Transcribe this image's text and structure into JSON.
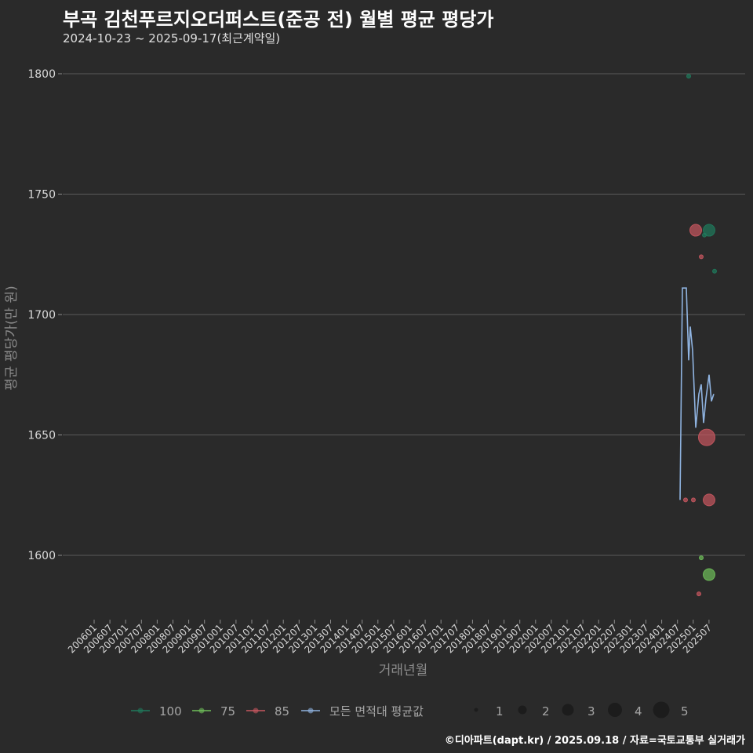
{
  "header": {
    "title": "부곡 김천푸르지오더퍼스트(준공 전) 월별 평균 평당가",
    "subtitle": "2024-10-23 ~ 2025-09-17(최근계약일)"
  },
  "caption": "©디아파트(dapt.kr) / 2025.09.18 / 자료=국토교통부 실거래가",
  "colors": {
    "background": "#2a2a2a",
    "grid": "#5a5a5a",
    "area_100": "#1f7a5c",
    "area_75": "#6fbf5a",
    "area_85": "#c8575f",
    "average_line": "#8fb3e0"
  },
  "chart_data": {
    "type": "line+scatter",
    "title": "부곡 김천푸르지오더퍼스트(준공 전) 월별 평균 평당가",
    "subtitle": "2024-10-23 ~ 2025-09-17(최근계약일)",
    "xlabel": "거래년월",
    "ylabel": "평균 평당가(만 원)",
    "ylim": [
      1572,
      1818
    ],
    "yticks": [
      1600,
      1650,
      1700,
      1750,
      1800
    ],
    "xticks": [
      "200601",
      "200607",
      "200701",
      "200707",
      "200801",
      "200807",
      "200901",
      "200907",
      "201001",
      "201007",
      "201101",
      "201107",
      "201201",
      "201207",
      "201301",
      "201307",
      "201401",
      "201407",
      "201501",
      "201507",
      "201601",
      "201607",
      "201701",
      "201707",
      "201801",
      "201807",
      "201901",
      "201907",
      "202001",
      "202007",
      "202101",
      "202107",
      "202201",
      "202207",
      "202301",
      "202307",
      "202401",
      "202407",
      "202501",
      "202507"
    ],
    "grid": true,
    "legend_position": "bottom",
    "legend": {
      "series": [
        "100",
        "75",
        "85",
        "모든 면적대 평균값"
      ],
      "size": [
        1,
        2,
        3,
        4,
        5
      ]
    },
    "series": [
      {
        "name": "모든 면적대 평균값",
        "type": "line",
        "points": [
          {
            "x": 867,
            "y": 1623
          },
          {
            "x": 870,
            "y": 1711
          },
          {
            "x": 875,
            "y": 1711
          },
          {
            "x": 878,
            "y": 1681
          },
          {
            "x": 880,
            "y": 1695
          },
          {
            "x": 883,
            "y": 1685
          },
          {
            "x": 887,
            "y": 1653
          },
          {
            "x": 891,
            "y": 1667
          },
          {
            "x": 894,
            "y": 1671
          },
          {
            "x": 897,
            "y": 1655
          },
          {
            "x": 900,
            "y": 1665
          },
          {
            "x": 904,
            "y": 1675
          },
          {
            "x": 907,
            "y": 1664
          },
          {
            "x": 910,
            "y": 1667
          }
        ]
      },
      {
        "name": "100",
        "type": "scatter",
        "points": [
          {
            "x": 878,
            "y": 1799,
            "size": 1
          },
          {
            "x": 904,
            "y": 1735,
            "size": 3
          },
          {
            "x": 898,
            "y": 1733,
            "size": 1
          },
          {
            "x": 911,
            "y": 1718,
            "size": 1
          }
        ]
      },
      {
        "name": "75",
        "type": "scatter",
        "points": [
          {
            "x": 894,
            "y": 1599,
            "size": 1
          },
          {
            "x": 904,
            "y": 1592,
            "size": 3
          }
        ]
      },
      {
        "name": "85",
        "type": "scatter",
        "points": [
          {
            "x": 887,
            "y": 1735,
            "size": 3
          },
          {
            "x": 894,
            "y": 1724,
            "size": 1
          },
          {
            "x": 901,
            "y": 1649,
            "size": 5
          },
          {
            "x": 874,
            "y": 1623,
            "size": 1
          },
          {
            "x": 884,
            "y": 1623,
            "size": 1
          },
          {
            "x": 904,
            "y": 1623,
            "size": 3
          },
          {
            "x": 891,
            "y": 1584,
            "size": 1
          }
        ]
      }
    ]
  }
}
